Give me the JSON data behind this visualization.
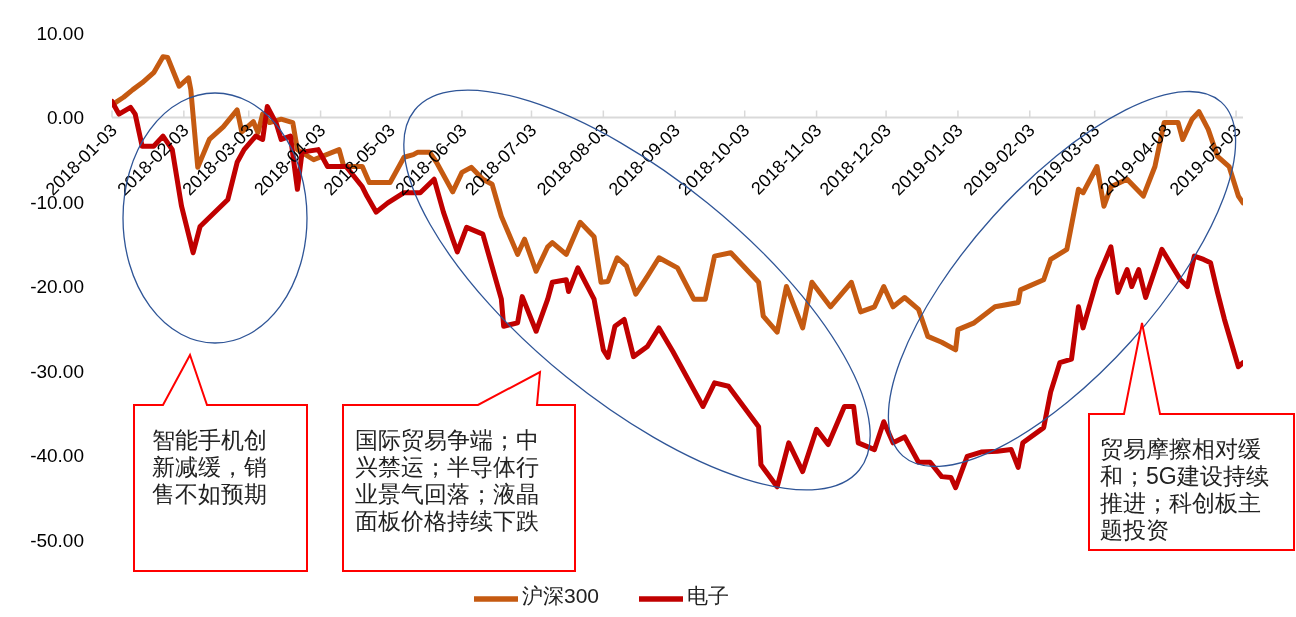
{
  "chart_data": {
    "type": "line",
    "xlim": [
      "2018-01-03",
      "2019-05-06"
    ],
    "xticks": [
      "2018-01-03",
      "2018-02-03",
      "2018-03-03",
      "2018-04-03",
      "2018-05-03",
      "2018-06-03",
      "2018-07-03",
      "2018-08-03",
      "2018-09-03",
      "2018-10-03",
      "2018-11-03",
      "2018-12-03",
      "2019-01-03",
      "2019-02-03",
      "2019-03-03",
      "2019-04-03",
      "2019-05-03"
    ],
    "ylim": [
      -50,
      10
    ],
    "yticks": [
      {
        "value": -50,
        "label": "-50.00"
      },
      {
        "value": -40,
        "label": "-40.00"
      },
      {
        "value": -30,
        "label": "-30.00"
      },
      {
        "value": -20,
        "label": "-20.00"
      },
      {
        "value": -10,
        "label": "-10.00"
      },
      {
        "value": 0,
        "label": "0.00"
      },
      {
        "value": 10,
        "label": "10.00"
      }
    ],
    "legend": "bottom",
    "grid": false,
    "series": [
      {
        "name": "沪深300",
        "color": "#c55a11",
        "x": [
          "2018-01-03",
          "2018-01-08",
          "2018-01-12",
          "2018-01-16",
          "2018-01-21",
          "2018-01-25",
          "2018-01-27",
          "2018-02-01",
          "2018-02-05",
          "2018-02-06",
          "2018-02-09",
          "2018-02-14",
          "2018-02-20",
          "2018-02-26",
          "2018-02-28",
          "2018-03-05",
          "2018-03-07",
          "2018-03-09",
          "2018-03-12",
          "2018-03-17",
          "2018-03-22",
          "2018-03-24",
          "2018-03-31",
          "2018-04-11",
          "2018-04-13",
          "2018-04-21",
          "2018-04-24",
          "2018-05-03",
          "2018-05-09",
          "2018-05-13",
          "2018-05-15",
          "2018-05-20",
          "2018-05-23",
          "2018-05-30",
          "2018-06-03",
          "2018-06-07",
          "2018-06-12",
          "2018-06-16",
          "2018-06-20",
          "2018-06-27",
          "2018-06-30",
          "2018-07-05",
          "2018-07-10",
          "2018-07-12",
          "2018-07-18",
          "2018-07-24",
          "2018-07-30",
          "2018-08-02",
          "2018-08-05",
          "2018-08-09",
          "2018-08-13",
          "2018-08-17",
          "2018-08-22",
          "2018-08-27",
          "2018-09-04",
          "2018-09-11",
          "2018-09-16",
          "2018-09-20",
          "2018-09-27",
          "2018-10-09",
          "2018-10-11",
          "2018-10-17",
          "2018-10-21",
          "2018-10-28",
          "2018-11-01",
          "2018-11-09",
          "2018-11-18",
          "2018-11-22",
          "2018-11-28",
          "2018-12-02",
          "2018-12-06",
          "2018-12-11",
          "2018-12-17",
          "2018-12-21",
          "2018-12-27",
          "2019-01-02",
          "2019-01-03",
          "2019-01-10",
          "2019-01-19",
          "2019-01-29",
          "2019-01-30",
          "2019-02-09",
          "2019-02-12",
          "2019-02-19",
          "2019-02-24",
          "2019-02-26",
          "2019-03-04",
          "2019-03-07",
          "2019-03-10",
          "2019-03-17",
          "2019-03-24",
          "2019-03-29",
          "2019-04-02",
          "2019-04-08",
          "2019-04-10",
          "2019-04-14",
          "2019-04-17",
          "2019-04-21",
          "2019-04-25",
          "2019-04-30",
          "2019-05-04",
          "2019-05-06"
        ],
        "values": [
          1.5,
          2.4,
          3.3,
          4.1,
          5.3,
          7.2,
          7.1,
          3.7,
          4.7,
          3.3,
          -5.9,
          -2.6,
          -1.1,
          0.9,
          -1.7,
          -0.5,
          -1.8,
          0.4,
          -0.6,
          -0.2,
          -0.6,
          -3.8,
          -5.0,
          -3.8,
          -5.8,
          -5.8,
          -7.7,
          -7.7,
          -4.7,
          -4.4,
          -4.1,
          -4.1,
          -5.3,
          -8.8,
          -6.5,
          -5.9,
          -7.3,
          -7.9,
          -11.7,
          -16.2,
          -14.4,
          -18.2,
          -15.3,
          -14.8,
          -16.2,
          -12.4,
          -14.1,
          -19.5,
          -19.4,
          -16.6,
          -17.6,
          -20.9,
          -18.8,
          -16.6,
          -17.8,
          -21.5,
          -21.5,
          -16.4,
          -16.0,
          -19.5,
          -23.5,
          -25.4,
          -20.0,
          -24.9,
          -19.5,
          -22.4,
          -19.5,
          -23.0,
          -22.4,
          -20.0,
          -22.4,
          -21.3,
          -22.7,
          -25.9,
          -26.6,
          -27.5,
          -25.1,
          -24.3,
          -22.4,
          -21.9,
          -20.4,
          -19.2,
          -16.8,
          -15.6,
          -8.5,
          -8.9,
          -5.8,
          -10.5,
          -8.2,
          -7.3,
          -9.3,
          -5.8,
          -0.6,
          -0.6,
          -2.6,
          -0.2,
          0.7,
          -1.4,
          -4.6,
          -5.8,
          -9.3,
          -10.1
        ]
      },
      {
        "name": "电子",
        "color": "#c00000",
        "x": [
          "2018-01-03",
          "2018-01-06",
          "2018-01-11",
          "2018-01-13",
          "2018-01-16",
          "2018-01-21",
          "2018-01-25",
          "2018-01-29",
          "2018-02-02",
          "2018-02-07",
          "2018-02-10",
          "2018-02-13",
          "2018-02-22",
          "2018-02-26",
          "2018-03-01",
          "2018-03-06",
          "2018-03-09",
          "2018-03-11",
          "2018-03-15",
          "2018-03-17",
          "2018-03-21",
          "2018-03-24",
          "2018-03-26",
          "2018-04-02",
          "2018-04-06",
          "2018-04-14",
          "2018-04-21",
          "2018-04-23",
          "2018-04-27",
          "2018-05-02",
          "2018-05-09",
          "2018-05-14",
          "2018-05-16",
          "2018-05-22",
          "2018-05-26",
          "2018-05-30",
          "2018-06-01",
          "2018-06-05",
          "2018-06-12",
          "2018-06-20",
          "2018-06-21",
          "2018-06-27",
          "2018-06-29",
          "2018-07-05",
          "2018-07-10",
          "2018-07-12",
          "2018-07-18",
          "2018-07-19",
          "2018-07-23",
          "2018-07-30",
          "2018-08-03",
          "2018-08-05",
          "2018-08-08",
          "2018-08-12",
          "2018-08-16",
          "2018-08-22",
          "2018-08-27",
          "2018-09-02",
          "2018-09-11",
          "2018-09-15",
          "2018-09-20",
          "2018-09-26",
          "2018-10-09",
          "2018-10-10",
          "2018-10-17",
          "2018-10-22",
          "2018-10-28",
          "2018-11-03",
          "2018-11-08",
          "2018-11-15",
          "2018-11-19",
          "2018-11-21",
          "2018-11-28",
          "2018-12-02",
          "2018-12-06",
          "2018-12-11",
          "2018-12-17",
          "2018-12-22",
          "2018-12-27",
          "2018-12-31",
          "2019-01-02",
          "2019-01-07",
          "2019-01-13",
          "2019-01-20",
          "2019-01-26",
          "2019-01-29",
          "2019-01-31",
          "2019-02-09",
          "2019-02-12",
          "2019-02-16",
          "2019-02-21",
          "2019-02-24",
          "2019-02-26",
          "2019-03-04",
          "2019-03-10",
          "2019-03-13",
          "2019-03-17",
          "2019-03-19",
          "2019-03-22",
          "2019-03-25",
          "2019-04-01",
          "2019-04-09",
          "2019-04-12",
          "2019-04-15",
          "2019-04-19",
          "2019-04-22",
          "2019-04-25",
          "2019-04-28",
          "2019-05-04",
          "2019-05-06"
        ],
        "values": [
          1.9,
          0.4,
          1.2,
          0.4,
          -3.4,
          -3.4,
          -2.2,
          -3.8,
          -10.5,
          -16.0,
          -12.9,
          -12.1,
          -9.7,
          -5.3,
          -3.8,
          -2.2,
          -2.6,
          1.3,
          -0.8,
          -2.6,
          -2.2,
          -8.5,
          -4.1,
          -3.8,
          -5.8,
          -5.8,
          -8.2,
          -9.3,
          -11.2,
          -10.1,
          -8.9,
          -8.9,
          -8.9,
          -7.3,
          -11.2,
          -14.4,
          -15.9,
          -13.0,
          -13.8,
          -21.5,
          -24.7,
          -24.3,
          -21.2,
          -25.3,
          -21.5,
          -19.5,
          -19.2,
          -20.6,
          -17.8,
          -21.5,
          -27.5,
          -28.4,
          -24.7,
          -23.9,
          -28.3,
          -27.1,
          -24.9,
          -27.7,
          -32.2,
          -34.2,
          -31.4,
          -31.8,
          -36.6,
          -41.1,
          -43.7,
          -38.5,
          -41.9,
          -36.9,
          -38.7,
          -34.2,
          -34.2,
          -38.5,
          -39.3,
          -36.0,
          -38.5,
          -37.8,
          -40.8,
          -40.8,
          -42.5,
          -42.6,
          -43.8,
          -40.1,
          -39.6,
          -39.5,
          -39.3,
          -41.4,
          -38.5,
          -36.7,
          -32.5,
          -29.0,
          -28.6,
          -22.4,
          -24.9,
          -19.2,
          -15.3,
          -20.7,
          -18.0,
          -20.0,
          -18.0,
          -21.3,
          -15.6,
          -19.2,
          -20.0,
          -16.4,
          -16.8,
          -17.2,
          -20.7,
          -23.9,
          -29.5,
          -29.0
        ]
      }
    ],
    "annotations": [
      "智能手机创新减缓，销售不如预期",
      "国际贸易争端；中兴禁运；半导体行业景气回落；液晶面板价格持续下跌",
      "贸易摩擦相对缓和；5G建设持续推进；科创板主题投资"
    ]
  }
}
